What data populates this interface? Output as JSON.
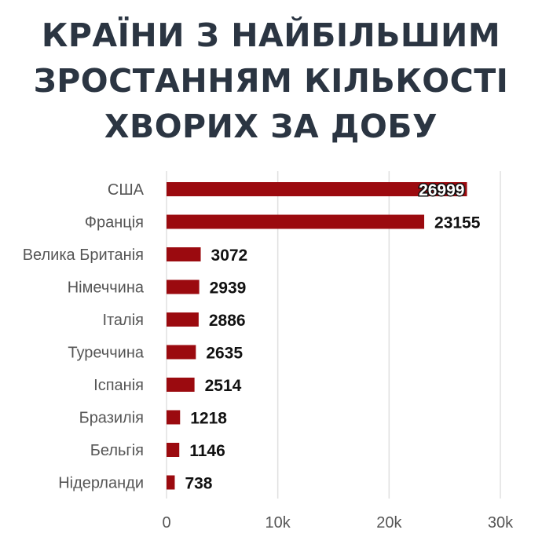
{
  "chart_data": {
    "type": "bar",
    "orientation": "horizontal",
    "title_lines": [
      "КРАЇНИ З НАЙБІЛЬШИМ",
      "ЗРОСТАННЯМ КІЛЬКОСТІ",
      "ХВОРИХ ЗА ДОБУ"
    ],
    "categories": [
      "США",
      "Франція",
      "Велика Британія",
      "Німеччина",
      "Італія",
      "Туреччина",
      "Іспанія",
      "Бразилія",
      "Бельгія",
      "Нідерланди"
    ],
    "values": [
      26999,
      23155,
      3072,
      2939,
      2886,
      2635,
      2514,
      1218,
      1146,
      738
    ],
    "value_labels": [
      "26999",
      "23155",
      "3072",
      "2939",
      "2886",
      "2635",
      "2514",
      "1218",
      "1146",
      "738"
    ],
    "xlim": [
      0,
      30000
    ],
    "ticks": [
      0,
      10000,
      20000,
      30000
    ],
    "tick_labels": [
      "0",
      "10k",
      "20k",
      "30k"
    ],
    "grid": true,
    "bar_color": "#9b0a0f",
    "grid_color": "#e0e0e0"
  }
}
